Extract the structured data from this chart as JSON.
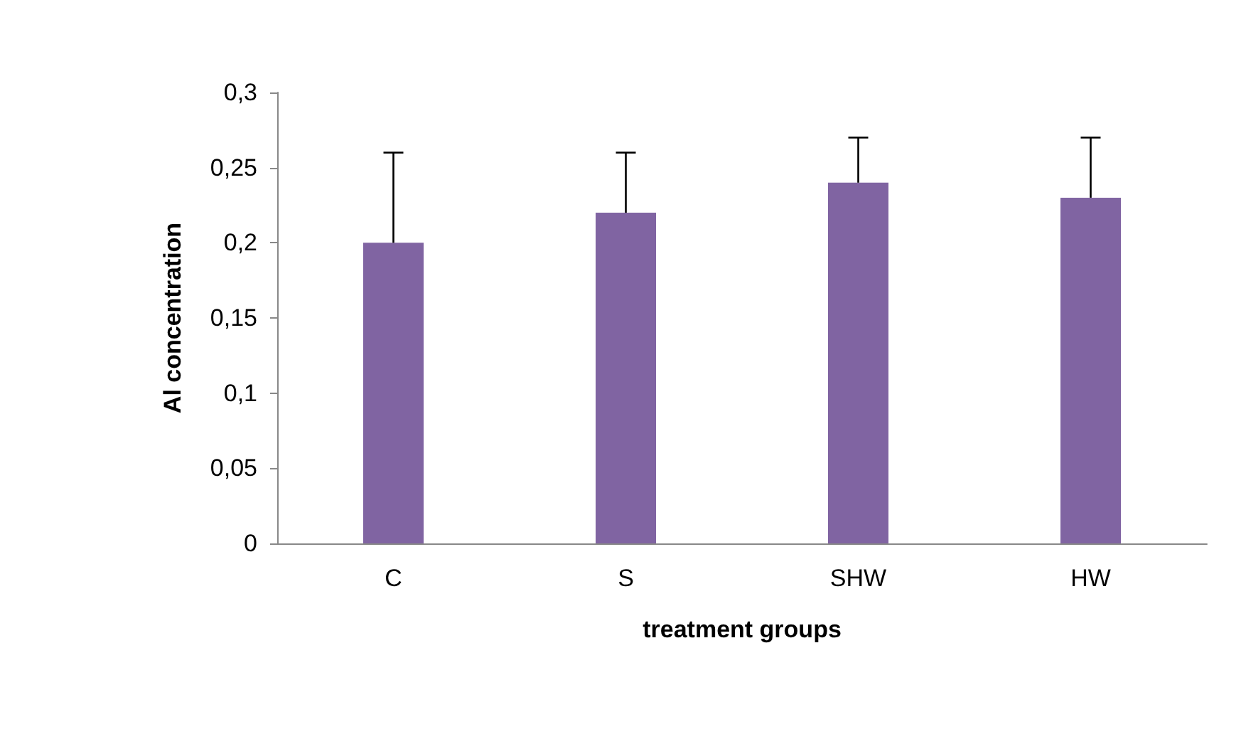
{
  "chart_data": {
    "type": "bar",
    "xlabel": "treatment groups",
    "ylabel": "Al concentration",
    "categories": [
      "C",
      "S",
      "SHW",
      "HW"
    ],
    "values": [
      0.2,
      0.22,
      0.24,
      0.23
    ],
    "errors": [
      [
        0.2,
        0.26
      ],
      [
        0.22,
        0.26
      ],
      [
        0.24,
        0.27
      ],
      [
        0.23,
        0.27
      ]
    ],
    "color": "#8064a2",
    "ylim": [
      0,
      0.3
    ],
    "yticks": [
      {
        "value": 0,
        "label": "0"
      },
      {
        "value": 0.05,
        "label": "0,05"
      },
      {
        "value": 0.1,
        "label": "0,1"
      },
      {
        "value": 0.15,
        "label": "0,15"
      },
      {
        "value": 0.2,
        "label": "0,2"
      },
      {
        "value": 0.25,
        "label": "0,25"
      },
      {
        "value": 0.3,
        "label": "0,3"
      }
    ],
    "grid": false
  }
}
